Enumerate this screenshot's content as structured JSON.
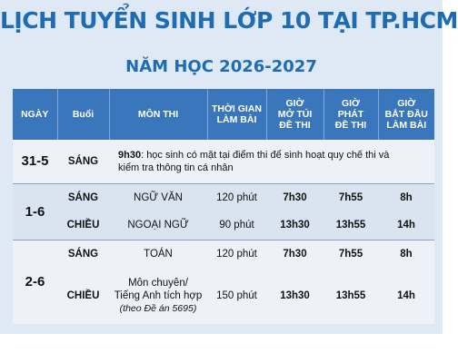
{
  "title": "LỊCH TUYỂN SINH LỚP 10 TẠI TP.HCM",
  "subtitle": "NĂM HỌC 2026-2027",
  "headers": {
    "ngay": "NGÀY",
    "buoi": "Buổi",
    "mon_thi": "MÔN THI",
    "thoi_gian_1": "THỜI GIAN",
    "thoi_gian_2": "LÀM BÀI",
    "mo_tui_1": "GIỜ",
    "mo_tui_2": "MỞ TÚI",
    "mo_tui_3": "ĐỀ THI",
    "phat_de_1": "GIỜ",
    "phat_de_2": "PHÁT",
    "phat_de_3": "ĐỀ THI",
    "bat_dau_1": "GIỜ",
    "bat_dau_2": "BẮT ĐẦU",
    "bat_dau_3": "LÀM BÀI"
  },
  "rows": {
    "r1": {
      "ngay": "31-5",
      "buoi": "SÁNG",
      "note_time": "9h30",
      "note_line1": ": học sinh có mặt tại điểm thi để sinh hoạt quy chế thi và",
      "note_line2": "kiểm tra thông tin cá nhân"
    },
    "r2": {
      "ngay": "1-6",
      "a": {
        "buoi": "SÁNG",
        "mon": "NGỮ VĂN",
        "thoi_gian": "120 phút",
        "mo_tui": "7h30",
        "phat_de": "7h55",
        "bat_dau": "8h"
      },
      "b": {
        "buoi": "CHIỀU",
        "mon": "NGOẠI NGỮ",
        "thoi_gian": "90 phút",
        "mo_tui": "13h30",
        "phat_de": "13h55",
        "bat_dau": "14h"
      }
    },
    "r3": {
      "ngay": "2-6",
      "a": {
        "buoi": "SÁNG",
        "mon": "TOÁN",
        "thoi_gian": "120 phút",
        "mo_tui": "7h30",
        "phat_de": "7h55",
        "bat_dau": "8h"
      },
      "b": {
        "buoi": "CHIỀU",
        "mon_line1": "Môn chuyên/",
        "mon_line2": "Tiếng Anh tích hợp",
        "mon_line3": "(theo Đề án 5695)",
        "thoi_gian": "150 phút",
        "mo_tui": "13h30",
        "phat_de": "13h55",
        "bat_dau": "14h"
      }
    }
  }
}
